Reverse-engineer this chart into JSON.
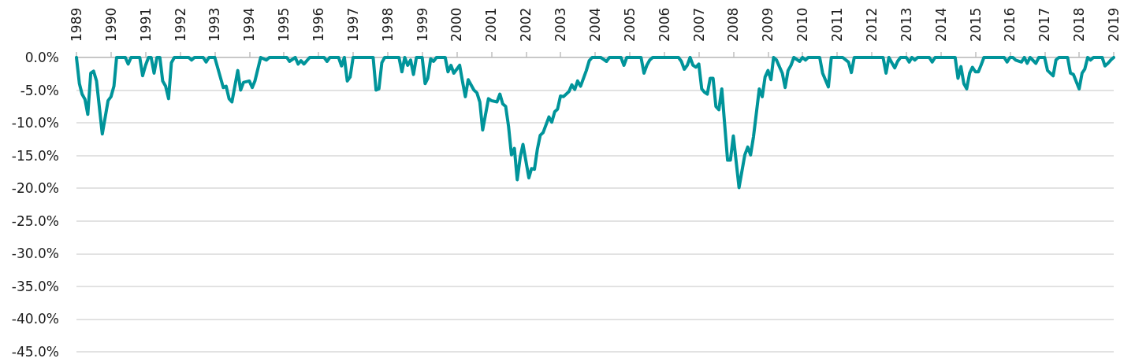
{
  "chart_data": {
    "type": "line",
    "color": "#00949a",
    "marker": "none",
    "line_style": "solid",
    "grid": "y",
    "x": [
      "1989-01",
      "1989-02",
      "1989-03",
      "1989-04",
      "1989-05",
      "1989-06",
      "1989-07",
      "1989-08",
      "1989-10",
      "1989-12",
      "1990-01",
      "1990-02",
      "1990-03",
      "1990-06",
      "1990-07",
      "1990-08",
      "1990-11",
      "1990-12",
      "1991-01",
      "1991-02",
      "1991-03",
      "1991-04",
      "1991-05",
      "1991-06",
      "1991-07",
      "1991-08",
      "1991-09",
      "1991-10",
      "1991-11",
      "1992-04",
      "1992-05",
      "1992-06",
      "1992-09",
      "1992-10",
      "1992-11",
      "1993-01",
      "1993-04",
      "1993-05",
      "1993-06",
      "1993-07",
      "1993-09",
      "1993-10",
      "1993-11",
      "1994-01",
      "1994-02",
      "1994-03",
      "1994-05",
      "1994-07",
      "1994-08",
      "1995-02",
      "1995-03",
      "1995-05",
      "1995-06",
      "1995-07",
      "1995-08",
      "1995-10",
      "1995-12",
      "1996-03",
      "1996-04",
      "1996-05",
      "1996-08",
      "1996-09",
      "1996-10",
      "1996-11",
      "1996-12",
      "1997-01",
      "1997-08",
      "1997-09",
      "1997-10",
      "1997-11",
      "1997-12",
      "1998-05",
      "1998-06",
      "1998-07",
      "1998-08",
      "1998-09",
      "1998-10",
      "1998-11",
      "1999-01",
      "1999-02",
      "1999-03",
      "1999-04",
      "1999-05",
      "1999-06",
      "1999-09",
      "1999-10",
      "1999-11",
      "1999-12",
      "2000-02",
      "2000-03",
      "2000-04",
      "2000-05",
      "2000-07",
      "2000-08",
      "2000-09",
      "2000-10",
      "2000-12",
      "2001-01",
      "2001-03",
      "2001-04",
      "2001-05",
      "2001-06",
      "2001-07",
      "2001-08",
      "2001-09",
      "2001-10",
      "2001-11",
      "2001-12",
      "2002-02",
      "2002-03",
      "2002-04",
      "2002-05",
      "2002-06",
      "2002-07",
      "2002-09",
      "2002-10",
      "2002-11",
      "2002-12",
      "2003-01",
      "2003-02",
      "2003-04",
      "2003-05",
      "2003-06",
      "2003-07",
      "2003-08",
      "2003-10",
      "2003-11",
      "2003-12",
      "2004-03",
      "2004-05",
      "2004-06",
      "2004-10",
      "2004-11",
      "2004-12",
      "2005-05",
      "2005-06",
      "2005-07",
      "2005-08",
      "2005-09",
      "2006-06",
      "2006-07",
      "2006-08",
      "2006-09",
      "2006-10",
      "2006-11",
      "2006-12",
      "2007-01",
      "2007-02",
      "2007-03",
      "2007-04",
      "2007-05",
      "2007-06",
      "2007-07",
      "2007-08",
      "2007-09",
      "2007-11",
      "2007-12",
      "2008-01",
      "2008-03",
      "2008-05",
      "2008-06",
      "2008-07",
      "2008-08",
      "2008-10",
      "2008-11",
      "2008-12",
      "2009-01",
      "2009-02",
      "2009-03",
      "2009-04",
      "2009-06",
      "2009-07",
      "2009-08",
      "2009-09",
      "2009-10",
      "2009-12",
      "2010-01",
      "2010-02",
      "2010-03",
      "2010-07",
      "2010-08",
      "2010-10",
      "2010-11",
      "2011-03",
      "2011-05",
      "2011-06",
      "2011-07",
      "2012-05",
      "2012-06",
      "2012-07",
      "2012-08",
      "2012-09",
      "2012-10",
      "2012-11",
      "2013-01",
      "2013-02",
      "2013-03",
      "2013-04",
      "2013-05",
      "2013-09",
      "2013-10",
      "2013-11",
      "2014-06",
      "2014-07",
      "2014-08",
      "2014-09",
      "2014-10",
      "2014-11",
      "2014-12",
      "2015-01",
      "2015-02",
      "2015-03",
      "2015-04",
      "2015-11",
      "2015-12",
      "2016-01",
      "2016-02",
      "2016-03",
      "2016-05",
      "2016-06",
      "2016-07",
      "2016-08",
      "2016-10",
      "2016-11",
      "2017-01",
      "2017-02",
      "2017-04",
      "2017-05",
      "2017-06",
      "2017-09",
      "2017-10",
      "2017-11",
      "2018-01",
      "2018-02",
      "2018-03",
      "2018-04",
      "2018-05",
      "2018-06",
      "2018-09",
      "2018-10",
      "2018-11",
      "2018-12",
      "2019-01"
    ],
    "values": [
      0,
      -4.0,
      -5.6,
      -6.4,
      -8.7,
      -2.4,
      -2.1,
      -3.6,
      -11.7,
      -6.6,
      -6.0,
      -4.4,
      0,
      0,
      -1.0,
      0,
      0,
      -2.8,
      -1.2,
      0,
      0,
      -2.4,
      0,
      0,
      -3.6,
      -4.4,
      -6.3,
      -0.8,
      0,
      0,
      -0.4,
      0,
      0,
      -0.7,
      0,
      0,
      -4.6,
      -4.4,
      -6.3,
      -6.8,
      -2.0,
      -5.0,
      -3.8,
      -3.6,
      -4.6,
      -3.6,
      0,
      -0.4,
      0,
      0,
      -0.6,
      0,
      -1.0,
      -0.5,
      -1.0,
      0,
      0,
      0,
      -0.6,
      0,
      0,
      -1.3,
      0,
      -3.6,
      -3.0,
      0,
      0,
      -5.0,
      -4.8,
      -0.8,
      0,
      0,
      -2.2,
      0,
      -1.2,
      -0.4,
      -2.6,
      0,
      0,
      -4.0,
      -3.2,
      -0.2,
      -0.6,
      0,
      0,
      -2.2,
      -1.2,
      -2.4,
      -1.2,
      -3.6,
      -6.0,
      -3.4,
      -5.0,
      -5.4,
      -6.8,
      -11.1,
      -6.3,
      -6.6,
      -6.8,
      -5.6,
      -7.1,
      -7.5,
      -10.5,
      -14.9,
      -13.9,
      -18.7,
      -15.3,
      -13.3,
      -18.4,
      -17.0,
      -17.1,
      -14.1,
      -11.9,
      -11.5,
      -9.1,
      -9.9,
      -8.3,
      -7.9,
      -5.9,
      -6.0,
      -5.2,
      -4.2,
      -4.9,
      -3.6,
      -4.4,
      -2.0,
      -0.5,
      0,
      0,
      -0.6,
      0,
      0,
      -1.2,
      0,
      0,
      -2.4,
      -1.2,
      -0.4,
      0,
      0,
      -0.6,
      -1.8,
      -1.2,
      0,
      -1.2,
      -1.5,
      -1.0,
      -4.8,
      -5.3,
      -5.6,
      -3.2,
      -3.2,
      -7.5,
      -8.0,
      -4.8,
      -15.7,
      -15.7,
      -12.0,
      -19.9,
      -14.9,
      -13.7,
      -14.9,
      -12.1,
      -4.8,
      -6.0,
      -3.0,
      -2.0,
      -3.4,
      0,
      -0.4,
      -2.4,
      -4.6,
      -2.0,
      -1.2,
      0,
      -0.6,
      0,
      -0.4,
      0,
      0,
      -2.4,
      -4.5,
      0,
      0,
      -0.7,
      -2.3,
      0,
      0,
      -2.4,
      0,
      -0.8,
      -1.6,
      -0.6,
      0,
      0,
      -0.7,
      0,
      -0.4,
      0,
      0,
      -0.7,
      0,
      0,
      -3.2,
      -1.4,
      -4.0,
      -4.8,
      -2.4,
      -1.5,
      -2.2,
      -2.2,
      -1.2,
      0,
      0,
      -0.7,
      0,
      0,
      -0.4,
      -0.7,
      0,
      -0.9,
      0,
      -0.9,
      0,
      0,
      -2.0,
      -2.8,
      -0.4,
      0,
      0,
      -2.4,
      -2.6,
      -4.8,
      -2.4,
      -1.8,
      0,
      -0.4,
      0,
      0,
      -1.3,
      -0.9,
      -0.4,
      0
    ],
    "xlim": [
      "1989",
      "2019"
    ],
    "xticks": [
      "1989",
      "1990",
      "1991",
      "1992",
      "1993",
      "1994",
      "1995",
      "1996",
      "1997",
      "1998",
      "1999",
      "2000",
      "2001",
      "2002",
      "2003",
      "2004",
      "2005",
      "2006",
      "2007",
      "2008",
      "2009",
      "2010",
      "2011",
      "2012",
      "2013",
      "2014",
      "2015",
      "2016",
      "2017",
      "2018",
      "2019"
    ],
    "ylim": [
      -45,
      0
    ],
    "yticks": [
      {
        "value": 0,
        "label": "0.0%"
      },
      {
        "value": -5,
        "label": "-5.0%"
      },
      {
        "value": -10,
        "label": "-10.0%"
      },
      {
        "value": -15,
        "label": "-15.0%"
      },
      {
        "value": -20,
        "label": "-20.0%"
      },
      {
        "value": -25,
        "label": "-25.0%"
      },
      {
        "value": -30,
        "label": "-30.0%"
      },
      {
        "value": -35,
        "label": "-35.0%"
      },
      {
        "value": -40,
        "label": "-40.0%"
      },
      {
        "value": -45,
        "label": "-45.0%"
      }
    ]
  }
}
